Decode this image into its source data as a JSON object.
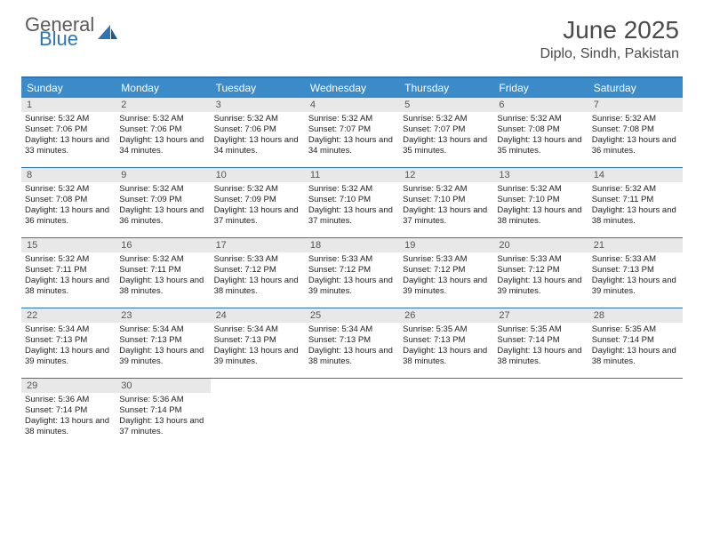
{
  "logo": {
    "text1": "General",
    "text2": "Blue",
    "color_general": "#5a5a5a",
    "color_blue": "#2e75b6"
  },
  "header": {
    "month": "June 2025",
    "location": "Diplo, Sindh, Pakistan"
  },
  "colors": {
    "header_bg": "#3b8bc8",
    "border": "#2e75b6",
    "daynum_bg": "#e8e8e8",
    "text": "#222222"
  },
  "day_names": [
    "Sunday",
    "Monday",
    "Tuesday",
    "Wednesday",
    "Thursday",
    "Friday",
    "Saturday"
  ],
  "weeks": [
    [
      {
        "n": "1",
        "sr": "5:32 AM",
        "ss": "7:06 PM",
        "dl": "13 hours and 33 minutes."
      },
      {
        "n": "2",
        "sr": "5:32 AM",
        "ss": "7:06 PM",
        "dl": "13 hours and 34 minutes."
      },
      {
        "n": "3",
        "sr": "5:32 AM",
        "ss": "7:06 PM",
        "dl": "13 hours and 34 minutes."
      },
      {
        "n": "4",
        "sr": "5:32 AM",
        "ss": "7:07 PM",
        "dl": "13 hours and 34 minutes."
      },
      {
        "n": "5",
        "sr": "5:32 AM",
        "ss": "7:07 PM",
        "dl": "13 hours and 35 minutes."
      },
      {
        "n": "6",
        "sr": "5:32 AM",
        "ss": "7:08 PM",
        "dl": "13 hours and 35 minutes."
      },
      {
        "n": "7",
        "sr": "5:32 AM",
        "ss": "7:08 PM",
        "dl": "13 hours and 36 minutes."
      }
    ],
    [
      {
        "n": "8",
        "sr": "5:32 AM",
        "ss": "7:08 PM",
        "dl": "13 hours and 36 minutes."
      },
      {
        "n": "9",
        "sr": "5:32 AM",
        "ss": "7:09 PM",
        "dl": "13 hours and 36 minutes."
      },
      {
        "n": "10",
        "sr": "5:32 AM",
        "ss": "7:09 PM",
        "dl": "13 hours and 37 minutes."
      },
      {
        "n": "11",
        "sr": "5:32 AM",
        "ss": "7:10 PM",
        "dl": "13 hours and 37 minutes."
      },
      {
        "n": "12",
        "sr": "5:32 AM",
        "ss": "7:10 PM",
        "dl": "13 hours and 37 minutes."
      },
      {
        "n": "13",
        "sr": "5:32 AM",
        "ss": "7:10 PM",
        "dl": "13 hours and 38 minutes."
      },
      {
        "n": "14",
        "sr": "5:32 AM",
        "ss": "7:11 PM",
        "dl": "13 hours and 38 minutes."
      }
    ],
    [
      {
        "n": "15",
        "sr": "5:32 AM",
        "ss": "7:11 PM",
        "dl": "13 hours and 38 minutes."
      },
      {
        "n": "16",
        "sr": "5:32 AM",
        "ss": "7:11 PM",
        "dl": "13 hours and 38 minutes."
      },
      {
        "n": "17",
        "sr": "5:33 AM",
        "ss": "7:12 PM",
        "dl": "13 hours and 38 minutes."
      },
      {
        "n": "18",
        "sr": "5:33 AM",
        "ss": "7:12 PM",
        "dl": "13 hours and 39 minutes."
      },
      {
        "n": "19",
        "sr": "5:33 AM",
        "ss": "7:12 PM",
        "dl": "13 hours and 39 minutes."
      },
      {
        "n": "20",
        "sr": "5:33 AM",
        "ss": "7:12 PM",
        "dl": "13 hours and 39 minutes."
      },
      {
        "n": "21",
        "sr": "5:33 AM",
        "ss": "7:13 PM",
        "dl": "13 hours and 39 minutes."
      }
    ],
    [
      {
        "n": "22",
        "sr": "5:34 AM",
        "ss": "7:13 PM",
        "dl": "13 hours and 39 minutes."
      },
      {
        "n": "23",
        "sr": "5:34 AM",
        "ss": "7:13 PM",
        "dl": "13 hours and 39 minutes."
      },
      {
        "n": "24",
        "sr": "5:34 AM",
        "ss": "7:13 PM",
        "dl": "13 hours and 39 minutes."
      },
      {
        "n": "25",
        "sr": "5:34 AM",
        "ss": "7:13 PM",
        "dl": "13 hours and 38 minutes."
      },
      {
        "n": "26",
        "sr": "5:35 AM",
        "ss": "7:13 PM",
        "dl": "13 hours and 38 minutes."
      },
      {
        "n": "27",
        "sr": "5:35 AM",
        "ss": "7:14 PM",
        "dl": "13 hours and 38 minutes."
      },
      {
        "n": "28",
        "sr": "5:35 AM",
        "ss": "7:14 PM",
        "dl": "13 hours and 38 minutes."
      }
    ],
    [
      {
        "n": "29",
        "sr": "5:36 AM",
        "ss": "7:14 PM",
        "dl": "13 hours and 38 minutes."
      },
      {
        "n": "30",
        "sr": "5:36 AM",
        "ss": "7:14 PM",
        "dl": "13 hours and 37 minutes."
      },
      null,
      null,
      null,
      null,
      null
    ]
  ],
  "labels": {
    "sunrise": "Sunrise:",
    "sunset": "Sunset:",
    "daylight": "Daylight:"
  }
}
